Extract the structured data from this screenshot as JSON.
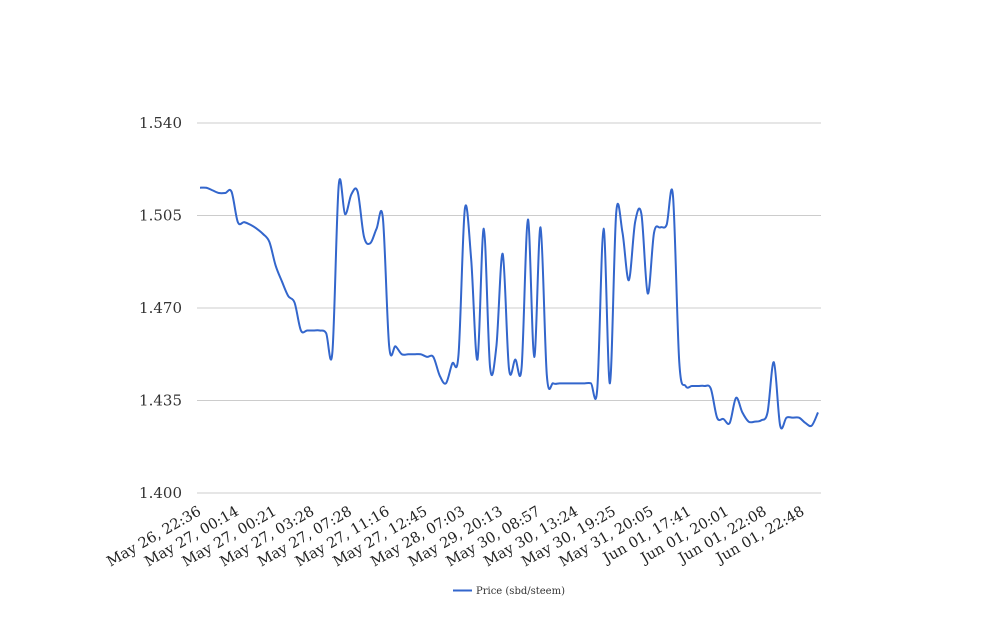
{
  "chart_data": {
    "type": "line",
    "title": "",
    "xlabel": "",
    "ylabel": "",
    "ylim": [
      1.4,
      1.54
    ],
    "y_ticks": [
      "1.400",
      "1.435",
      "1.470",
      "1.505",
      "1.540"
    ],
    "x_tick_labels": [
      "May 26, 22:36",
      "May 27, 00:14",
      "May 27, 00:21",
      "May 27, 03:28",
      "May 27, 07:28",
      "May 27, 11:16",
      "May 27, 12:45",
      "May 28, 07:03",
      "May 29, 20:13",
      "May 30, 08:57",
      "May 30, 13:24",
      "May 30, 19:25",
      "May 31, 20:05",
      "Jun 01, 17:41",
      "Jun 01, 20:01",
      "Jun 01, 22:08",
      "Jun 01, 22:48"
    ],
    "grid": true,
    "legend_position": "bottom-center",
    "series": [
      {
        "name": "Price (sbd/steem)",
        "color": "#3366cc",
        "values": [
          1.5155,
          1.5155,
          1.5145,
          1.5135,
          1.5135,
          1.514,
          1.5025,
          1.5025,
          1.5015,
          1.5,
          1.498,
          1.495,
          1.486,
          1.48,
          1.4745,
          1.472,
          1.4615,
          1.4615,
          1.4615,
          1.4615,
          1.4605,
          1.4535,
          1.5165,
          1.5055,
          1.513,
          1.514,
          1.497,
          1.4945,
          1.5,
          1.504,
          1.4555,
          1.4555,
          1.4525,
          1.4525,
          1.4525,
          1.4525,
          1.4515,
          1.4515,
          1.4445,
          1.4415,
          1.449,
          1.4525,
          1.5075,
          1.4885,
          1.4505,
          1.5,
          1.4475,
          1.4555,
          1.4905,
          1.447,
          1.4505,
          1.4475,
          1.5035,
          1.4515,
          1.5005,
          1.4445,
          1.4415,
          1.4415,
          1.4415,
          1.4415,
          1.4415,
          1.4415,
          1.4415,
          1.4395,
          1.5,
          1.4415,
          1.506,
          1.4985,
          1.4805,
          1.5025,
          1.5055,
          1.4755,
          1.4985,
          1.5005,
          1.5015,
          1.5125,
          1.4495,
          1.4405,
          1.4405,
          1.4405,
          1.4405,
          1.4395,
          1.4285,
          1.428,
          1.4265,
          1.436,
          1.4305,
          1.427,
          1.427,
          1.4275,
          1.4305,
          1.4495,
          1.4255,
          1.4285,
          1.4285,
          1.4285,
          1.4265,
          1.4255,
          1.4305
        ]
      }
    ]
  }
}
